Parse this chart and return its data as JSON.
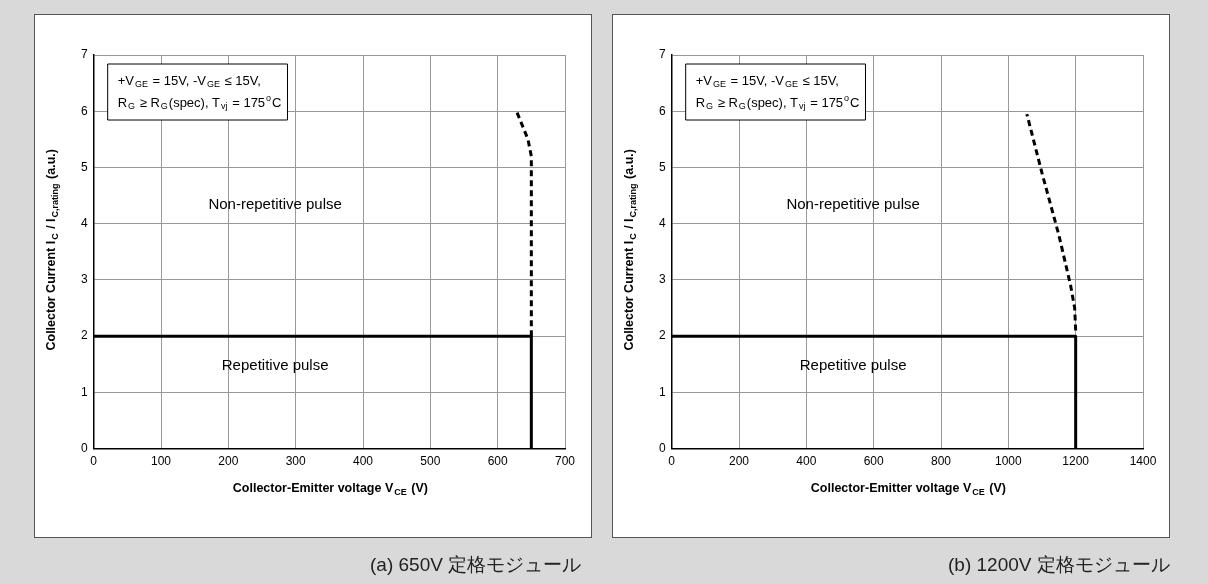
{
  "chart_data": [
    {
      "type": "line",
      "title": "(a) 650V 定格モジュール",
      "xlabel": "Collector-Emitter voltage V$_{CE}$ (V)",
      "ylabel": "Collector Current I$_{C}$ / I$_{C,rating}$ (a.u.)",
      "series": [
        {
          "color": "#000000",
          "line_style": "solid",
          "x": [
            0,
            650,
            650
          ],
          "values": [
            2,
            2,
            0
          ]
        },
        {
          "color": "#000000",
          "line_style": "dashed",
          "x": [
            650,
            650,
            645,
            628
          ],
          "values": [
            2,
            5.2,
            5.5,
            6
          ]
        }
      ],
      "xlim": [
        0,
        700
      ],
      "xticks": [
        0,
        100,
        200,
        300,
        400,
        500,
        600,
        700
      ],
      "ylim": [
        0,
        7
      ],
      "yticks": [
        0,
        1,
        2,
        3,
        4,
        5,
        6,
        7
      ],
      "grid": true,
      "legend": false,
      "marker": "none",
      "annotations": [
        "+V$_{GE}$ = 15V, -V$_{GE}$ ≤ 15V,",
        "R$_{G}$ ≥ R$_{G}$(spec), T$_{vj}$ = 175$^{o}$C",
        "Non-repetitive pulse",
        "Repetitive pulse"
      ]
    },
    {
      "type": "line",
      "title": "(b)  1200V 定格モジュール",
      "xlabel": "Collector-Emitter voltage V$_{CE}$ (V)",
      "ylabel": "Collector Current I$_{C}$ / I$_{C,rating}$ (a.u.)",
      "series": [
        {
          "color": "#000000",
          "line_style": "solid",
          "x": [
            0,
            1200,
            1200
          ],
          "values": [
            2,
            2,
            0
          ]
        },
        {
          "color": "#000000",
          "line_style": "dashed",
          "x": [
            1200,
            1197,
            1185,
            1150,
            1100,
            1055
          ],
          "values": [
            2.1,
            2.5,
            2.9,
            3.8,
            4.9,
            5.95
          ]
        }
      ],
      "xlim": [
        0,
        1400
      ],
      "xticks": [
        0,
        200,
        400,
        600,
        800,
        1000,
        1200,
        1400
      ],
      "ylim": [
        0,
        7
      ],
      "yticks": [
        0,
        1,
        2,
        3,
        4,
        5,
        6,
        7
      ],
      "grid": true,
      "legend": false,
      "marker": "none",
      "annotations": [
        "+V$_{GE}$ = 15V, -V$_{GE}$ ≤ 15V,",
        "R$_{G}$ ≥ R$_{G}$(spec), T$_{vj}$ = 175$^{o}$C",
        "Non-repetitive pulse",
        "Repetitive pulse"
      ]
    }
  ]
}
